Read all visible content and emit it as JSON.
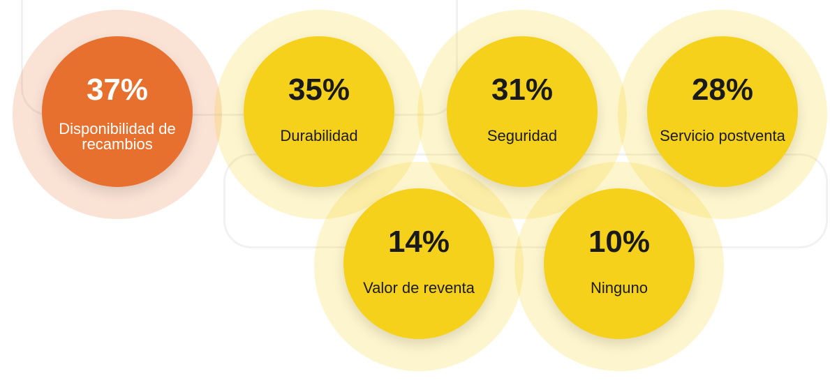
{
  "chart_data": {
    "type": "circles",
    "categories": [
      "Disponibilidad de recambios",
      "Durabilidad",
      "Seguridad",
      "Servicio postventa",
      "Valor de reventa",
      "Ninguno"
    ],
    "values": [
      37,
      35,
      31,
      28,
      14,
      10
    ],
    "value_labels": [
      "37%",
      "35%",
      "31%",
      "28%",
      "14%",
      "10%"
    ],
    "colors": [
      "#e8702f",
      "#f5d11b",
      "#f5d11b",
      "#f5d11b",
      "#f5d11b",
      "#f5d11b"
    ]
  }
}
